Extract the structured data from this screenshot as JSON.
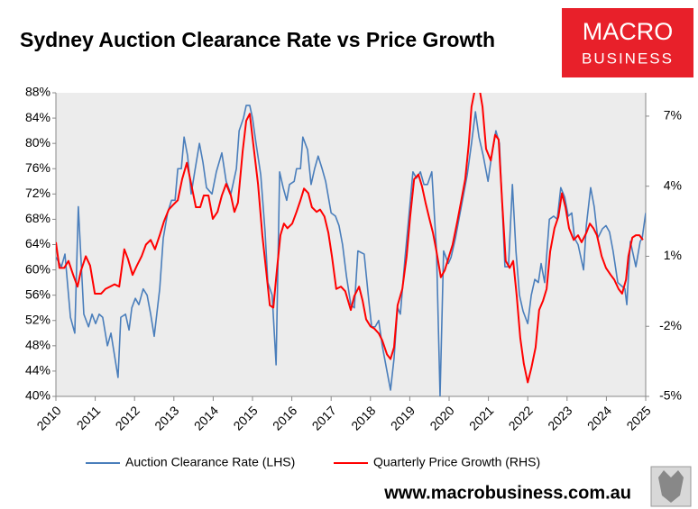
{
  "chart_data": {
    "type": "line",
    "title": "Sydney Auction Clearance Rate vs Price Growth",
    "xlim": [
      2010,
      2025
    ],
    "xticks": [
      2010,
      2011,
      2012,
      2013,
      2014,
      2015,
      2016,
      2017,
      2018,
      2019,
      2020,
      2021,
      2022,
      2023,
      2024,
      2025
    ],
    "ylim": [
      40,
      88
    ],
    "yticks": [
      {
        "value": 40,
        "label": "40%"
      },
      {
        "value": 44,
        "label": "44%"
      },
      {
        "value": 48,
        "label": "48%"
      },
      {
        "value": 52,
        "label": "52%"
      },
      {
        "value": 56,
        "label": "56%"
      },
      {
        "value": 60,
        "label": "60%"
      },
      {
        "value": 64,
        "label": "64%"
      },
      {
        "value": 68,
        "label": "68%"
      },
      {
        "value": 72,
        "label": "72%"
      },
      {
        "value": 76,
        "label": "76%"
      },
      {
        "value": 80,
        "label": "80%"
      },
      {
        "value": 84,
        "label": "84%"
      },
      {
        "value": 88,
        "label": "88%"
      }
    ],
    "y2lim": [
      -5,
      8
    ],
    "y2ticks": [
      {
        "value": -5,
        "label": "-5%"
      },
      {
        "value": -2,
        "label": "-2%"
      },
      {
        "value": 1,
        "label": "1%"
      },
      {
        "value": 4,
        "label": "4%"
      },
      {
        "value": 7,
        "label": "7%"
      }
    ],
    "grid": false,
    "legend": "bottom",
    "series": [
      {
        "name": "Auction Clearance Rate (LHS)",
        "color": "#4a7ebb",
        "axis": "y",
        "x": [
          2010.0,
          2010.14,
          2010.23,
          2010.37,
          2010.48,
          2010.57,
          2010.71,
          2010.83,
          2010.92,
          2011.01,
          2011.1,
          2011.19,
          2011.31,
          2011.4,
          2011.58,
          2011.65,
          2011.77,
          2011.86,
          2011.93,
          2012.02,
          2012.11,
          2012.22,
          2012.32,
          2012.41,
          2012.5,
          2012.64,
          2012.73,
          2012.84,
          2012.94,
          2013.03,
          2013.1,
          2013.19,
          2013.26,
          2013.35,
          2013.44,
          2013.53,
          2013.65,
          2013.74,
          2013.83,
          2013.97,
          2014.08,
          2014.22,
          2014.33,
          2014.45,
          2014.59,
          2014.66,
          2014.77,
          2014.84,
          2014.93,
          2015.0,
          2015.09,
          2015.21,
          2015.32,
          2015.39,
          2015.5,
          2015.6,
          2015.69,
          2015.78,
          2015.87,
          2015.94,
          2016.06,
          2016.12,
          2016.22,
          2016.28,
          2016.4,
          2016.49,
          2016.58,
          2016.67,
          2016.77,
          2016.86,
          2017.0,
          2017.11,
          2017.2,
          2017.29,
          2017.39,
          2017.5,
          2017.59,
          2017.68,
          2017.84,
          2017.96,
          2018.03,
          2018.12,
          2018.21,
          2018.3,
          2018.42,
          2018.51,
          2018.6,
          2018.69,
          2018.76,
          2018.88,
          2018.97,
          2019.08,
          2019.17,
          2019.27,
          2019.36,
          2019.45,
          2019.56,
          2019.68,
          2019.77,
          2019.86,
          2019.98,
          2020.05,
          2020.16,
          2020.28,
          2020.37,
          2020.46,
          2020.57,
          2020.67,
          2020.76,
          2020.87,
          2020.99,
          2021.08,
          2021.19,
          2021.28,
          2021.42,
          2021.51,
          2021.61,
          2021.7,
          2021.79,
          2021.88,
          2022.0,
          2022.09,
          2022.18,
          2022.27,
          2022.34,
          2022.43,
          2022.55,
          2022.66,
          2022.75,
          2022.84,
          2022.94,
          2023.03,
          2023.12,
          2023.19,
          2023.28,
          2023.42,
          2023.49,
          2023.6,
          2023.69,
          2023.78,
          2023.9,
          2023.99,
          2024.08,
          2024.17,
          2024.29,
          2024.47,
          2024.52,
          2024.61,
          2024.75,
          2024.86,
          2024.91,
          2025.0
        ],
        "values": [
          62,
          60.5,
          62.5,
          52.5,
          50,
          70,
          53,
          51,
          53,
          51.5,
          53,
          52.5,
          48,
          50,
          43,
          52.5,
          53,
          50.5,
          54,
          55.5,
          54.5,
          57,
          56,
          53,
          49.5,
          57,
          65,
          69,
          71,
          71,
          76,
          76,
          81,
          78,
          72,
          75.5,
          80,
          77,
          73,
          72,
          75.5,
          78.5,
          74,
          72,
          76,
          82,
          84,
          86,
          86,
          84,
          80,
          75,
          66,
          58,
          56,
          45,
          75.5,
          73,
          71,
          73.5,
          74,
          76,
          76,
          81,
          79,
          73.5,
          76,
          78,
          76,
          74,
          69,
          68.5,
          67,
          64,
          59,
          54.5,
          54,
          63,
          62.5,
          55,
          51,
          51,
          52,
          48,
          44,
          41,
          46,
          54,
          53,
          62,
          68,
          75.5,
          74.5,
          75.5,
          73.5,
          73.5,
          75.5,
          63,
          40,
          63,
          61,
          62,
          65,
          69,
          72,
          75,
          80,
          85,
          81,
          78,
          74,
          78,
          82,
          80,
          60.5,
          60.5,
          73.5,
          63,
          56,
          53.5,
          51.5,
          56,
          58.5,
          58,
          61,
          58,
          68,
          68.5,
          68,
          73,
          71.5,
          68.5,
          69,
          65,
          64,
          60,
          67,
          73,
          70,
          65,
          66.5,
          67,
          66,
          63,
          58,
          57,
          54.5,
          64.5,
          60.5,
          64.5,
          65,
          69
        ]
      },
      {
        "name": "Quarterly Price Growth (RHS)",
        "color": "#ff0000",
        "axis": "y2",
        "x": [
          2010.0,
          2010.09,
          2010.21,
          2010.32,
          2010.44,
          2010.55,
          2010.64,
          2010.76,
          2010.87,
          2010.99,
          2011.15,
          2011.26,
          2011.38,
          2011.49,
          2011.61,
          2011.74,
          2011.83,
          2011.95,
          2012.06,
          2012.18,
          2012.29,
          2012.41,
          2012.52,
          2012.64,
          2012.75,
          2012.87,
          2012.98,
          2013.1,
          2013.21,
          2013.33,
          2013.44,
          2013.56,
          2013.67,
          2013.76,
          2013.88,
          2013.99,
          2014.11,
          2014.22,
          2014.33,
          2014.45,
          2014.54,
          2014.63,
          2014.75,
          2014.84,
          2014.93,
          2015.02,
          2015.14,
          2015.25,
          2015.34,
          2015.44,
          2015.53,
          2015.62,
          2015.71,
          2015.8,
          2015.89,
          2016.01,
          2016.12,
          2016.22,
          2016.31,
          2016.42,
          2016.51,
          2016.63,
          2016.72,
          2016.83,
          2016.93,
          2017.02,
          2017.13,
          2017.25,
          2017.36,
          2017.5,
          2017.59,
          2017.71,
          2017.8,
          2017.89,
          2018.0,
          2018.1,
          2018.21,
          2018.3,
          2018.42,
          2018.51,
          2018.6,
          2018.69,
          2018.81,
          2018.92,
          2019.01,
          2019.11,
          2019.22,
          2019.31,
          2019.4,
          2019.5,
          2019.59,
          2019.68,
          2019.79,
          2019.89,
          2019.98,
          2020.09,
          2020.21,
          2020.3,
          2020.41,
          2020.5,
          2020.57,
          2020.64,
          2020.69,
          2020.76,
          2020.85,
          2020.94,
          2021.06,
          2021.17,
          2021.26,
          2021.35,
          2021.44,
          2021.54,
          2021.63,
          2021.72,
          2021.81,
          2021.9,
          2022.0,
          2022.09,
          2022.2,
          2022.29,
          2022.39,
          2022.48,
          2022.57,
          2022.68,
          2022.78,
          2022.87,
          2022.96,
          2023.05,
          2023.17,
          2023.28,
          2023.37,
          2023.49,
          2023.58,
          2023.67,
          2023.76,
          2023.88,
          2023.99,
          2024.11,
          2024.2,
          2024.31,
          2024.4,
          2024.5,
          2024.56,
          2024.66,
          2024.75,
          2024.84,
          2024.93
        ],
        "values": [
          1.6,
          0.5,
          0.5,
          0.8,
          0.2,
          -0.3,
          0.4,
          1.0,
          0.6,
          -0.6,
          -0.6,
          -0.4,
          -0.3,
          -0.2,
          -0.3,
          1.3,
          0.9,
          0.2,
          0.6,
          1.0,
          1.5,
          1.7,
          1.3,
          1.9,
          2.5,
          3.0,
          3.2,
          3.4,
          4.3,
          5.0,
          4.1,
          3.1,
          3.1,
          3.6,
          3.6,
          2.6,
          2.9,
          3.6,
          4.1,
          3.6,
          2.9,
          3.3,
          5.5,
          6.8,
          7.1,
          5.8,
          4.1,
          1.9,
          0.5,
          -1.1,
          -1.2,
          0.4,
          1.9,
          2.4,
          2.2,
          2.4,
          2.9,
          3.4,
          3.9,
          3.7,
          3.1,
          2.9,
          3.0,
          2.7,
          2.0,
          1.0,
          -0.4,
          -0.3,
          -0.5,
          -1.3,
          -0.7,
          -0.3,
          -0.9,
          -1.7,
          -2.0,
          -2.1,
          -2.3,
          -2.6,
          -3.2,
          -3.4,
          -2.9,
          -1.1,
          -0.4,
          1.0,
          2.7,
          4.3,
          4.5,
          4.0,
          3.3,
          2.6,
          2.0,
          1.2,
          0.1,
          0.4,
          0.9,
          1.5,
          2.5,
          3.3,
          4.3,
          5.8,
          7.4,
          8.0,
          8.6,
          8.3,
          7.4,
          5.6,
          5.1,
          6.2,
          6.0,
          3.3,
          0.8,
          0.5,
          0.8,
          -0.7,
          -2.5,
          -3.6,
          -4.4,
          -3.8,
          -2.9,
          -1.3,
          -0.9,
          -0.4,
          1.2,
          2.2,
          2.7,
          3.7,
          3.1,
          2.2,
          1.7,
          1.9,
          1.6,
          2.0,
          2.4,
          2.2,
          1.9,
          1.0,
          0.5,
          0.2,
          0.0,
          -0.4,
          -0.6,
          0.0,
          1.0,
          1.8,
          1.9,
          1.9,
          1.7
        ]
      }
    ]
  },
  "branding": {
    "logo_top": "MACRO",
    "logo_bottom": "BUSINESS",
    "website": "www.macrobusiness.com.au"
  }
}
